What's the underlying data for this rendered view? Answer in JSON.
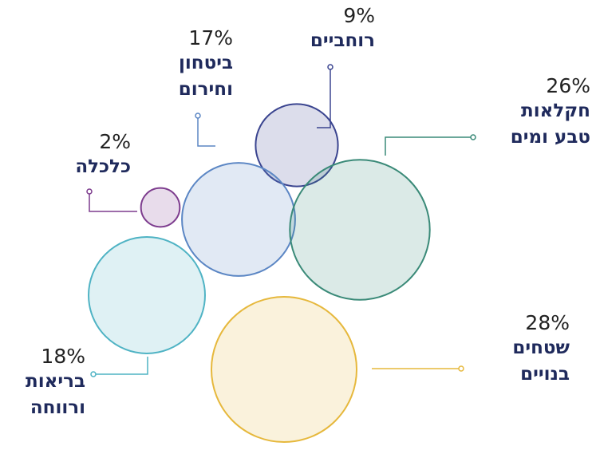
{
  "chart_data": {
    "type": "bubble",
    "categories": [
      "רוחביים",
      "ביטחון וחירום",
      "חקלאות טבע ומים",
      "כלכלה",
      "בריאות ורווחה",
      "שטחים בנויים"
    ],
    "values": [
      9,
      17,
      26,
      2,
      18,
      28
    ],
    "value_labels": [
      "9%",
      "17%",
      "26%",
      "2%",
      "18%",
      "28%"
    ],
    "colors": [
      "#3b4590",
      "#5b86c4",
      "#3a8a78",
      "#7d3c8e",
      "#4fb3c4",
      "#e6b83c"
    ]
  }
}
